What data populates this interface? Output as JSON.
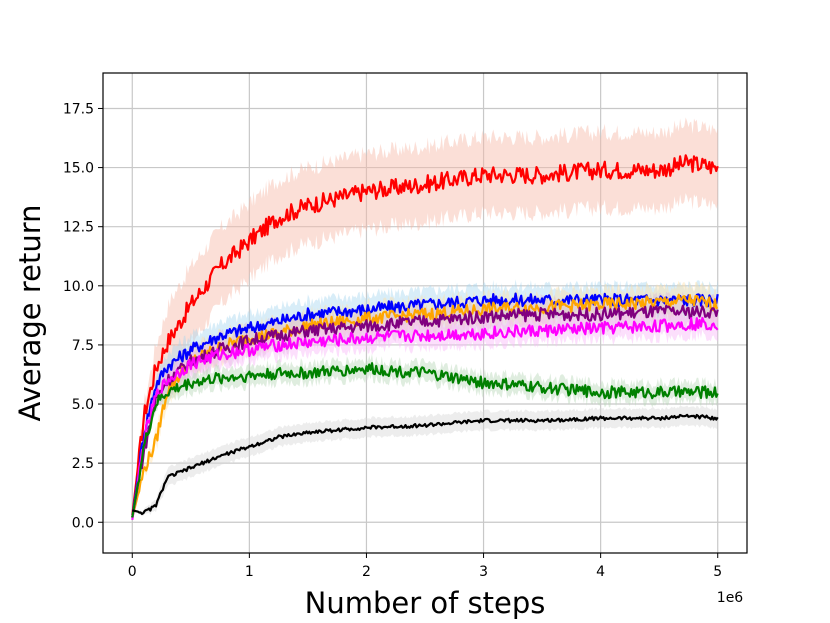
{
  "chart_data": {
    "type": "line",
    "title": "",
    "xlabel": "Number of steps",
    "ylabel": "Average return",
    "x_offset_label": "1e6",
    "xlim": [
      -0.25,
      5.25
    ],
    "ylim": [
      -1.3,
      19.0
    ],
    "x_ticks": [
      0,
      1,
      2,
      3,
      4,
      5
    ],
    "x_tick_labels": [
      "0",
      "1",
      "2",
      "3",
      "4",
      "5"
    ],
    "y_ticks": [
      0.0,
      2.5,
      5.0,
      7.5,
      10.0,
      12.5,
      15.0,
      17.5
    ],
    "y_tick_labels": [
      "0.0",
      "2.5",
      "5.0",
      "7.5",
      "10.0",
      "12.5",
      "15.0",
      "17.5"
    ],
    "grid": true,
    "legend": "none",
    "x": [
      0,
      0.1,
      0.2,
      0.3,
      0.5,
      0.75,
      1.0,
      1.25,
      1.5,
      2.0,
      2.5,
      3.0,
      3.5,
      4.0,
      4.5,
      4.75,
      5.0
    ],
    "series": [
      {
        "color": "#ff0000",
        "band_color": "#f6b8a6",
        "band": 1.6,
        "values": [
          0.3,
          4.5,
          6.5,
          7.6,
          9.2,
          10.8,
          11.9,
          12.9,
          13.4,
          14.0,
          14.3,
          14.7,
          14.7,
          14.9,
          14.9,
          15.2,
          15.0
        ]
      },
      {
        "color": "#0000ff",
        "band_color": "#a8d8f0",
        "band": 0.6,
        "values": [
          0.2,
          3.8,
          5.8,
          6.6,
          7.3,
          7.9,
          8.2,
          8.5,
          8.8,
          9.0,
          9.2,
          9.4,
          9.4,
          9.4,
          9.4,
          9.4,
          9.4
        ]
      },
      {
        "color": "#ffa500",
        "band_color": "#ffe0a8",
        "band": 0.6,
        "values": [
          0.2,
          2.2,
          3.4,
          5.6,
          6.8,
          7.4,
          7.8,
          8.0,
          8.3,
          8.6,
          8.8,
          9.0,
          9.1,
          9.2,
          9.3,
          9.4,
          9.2
        ]
      },
      {
        "color": "#800080",
        "band_color": "#d8b8d8",
        "band": 0.6,
        "values": [
          0.2,
          3.0,
          5.2,
          6.0,
          6.8,
          7.3,
          7.7,
          7.9,
          8.1,
          8.3,
          8.5,
          8.7,
          8.8,
          8.8,
          8.9,
          8.9,
          8.9
        ]
      },
      {
        "color": "#ff00ff",
        "band_color": "#f8b8f8",
        "band": 0.5,
        "values": [
          0.1,
          3.5,
          5.3,
          6.0,
          6.7,
          7.1,
          7.3,
          7.5,
          7.6,
          7.8,
          7.9,
          8.0,
          8.1,
          8.2,
          8.3,
          8.4,
          8.4
        ]
      },
      {
        "color": "#008000",
        "band_color": "#b8d8b8",
        "band": 0.4,
        "values": [
          0.2,
          3.2,
          5.0,
          5.5,
          5.9,
          6.1,
          6.2,
          6.3,
          6.3,
          6.5,
          6.3,
          5.9,
          5.7,
          5.5,
          5.5,
          5.5,
          5.5
        ]
      },
      {
        "color": "#000000",
        "band_color": "#d8d8d8",
        "band": 0.4,
        "values": [
          0.5,
          0.4,
          0.7,
          1.9,
          2.3,
          2.8,
          3.2,
          3.6,
          3.8,
          4.0,
          4.1,
          4.3,
          4.3,
          4.4,
          4.4,
          4.5,
          4.4
        ]
      }
    ]
  }
}
